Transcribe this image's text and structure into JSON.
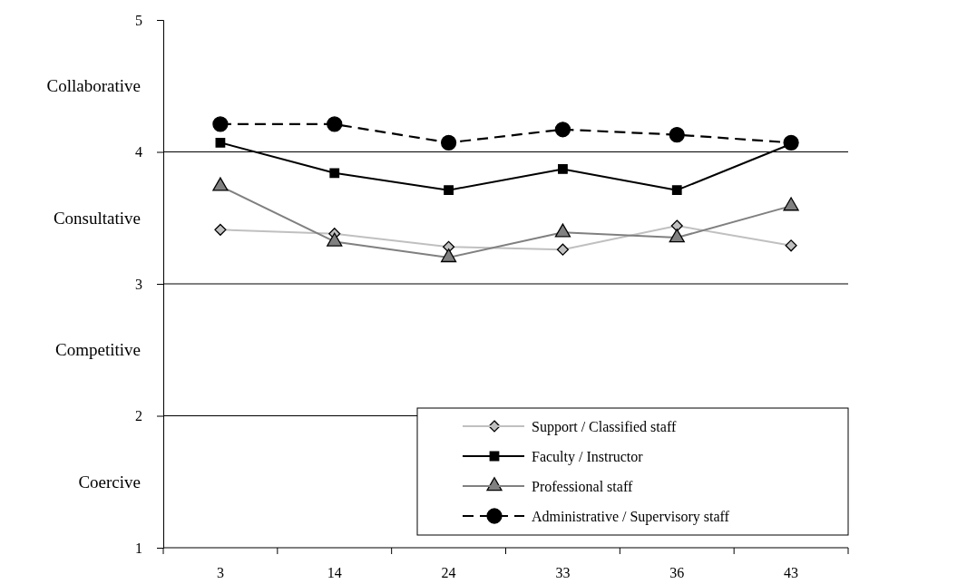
{
  "chart_data": {
    "type": "line",
    "categories": [
      "3",
      "14",
      "24",
      "33",
      "36",
      "43"
    ],
    "series": [
      {
        "name": "Support / Classified staff",
        "color": "#c0c0c0",
        "marker": "diamond",
        "line_style": "solid",
        "values": [
          3.41,
          3.38,
          3.28,
          3.26,
          3.44,
          3.29
        ]
      },
      {
        "name": "Faculty / Instructor",
        "color": "#000000",
        "marker": "square",
        "line_style": "solid",
        "values": [
          4.07,
          3.84,
          3.71,
          3.87,
          3.71,
          4.06
        ]
      },
      {
        "name": "Professional staff",
        "color": "#808080",
        "marker": "triangle",
        "line_style": "solid",
        "values": [
          3.74,
          3.32,
          3.2,
          3.39,
          3.35,
          3.59
        ]
      },
      {
        "name": "Administrative / Supervisory staff",
        "color": "#000000",
        "marker": "circle",
        "line_style": "dashed",
        "values": [
          4.21,
          4.21,
          4.07,
          4.17,
          4.13,
          4.07
        ]
      }
    ],
    "ylim": [
      1,
      5
    ],
    "yticks": [
      1,
      2,
      3,
      4,
      5
    ],
    "grid": "y",
    "legend": "bottom right",
    "annotations": [
      "Collaborative",
      "Consultative",
      "Competitive",
      "Coercive"
    ]
  }
}
